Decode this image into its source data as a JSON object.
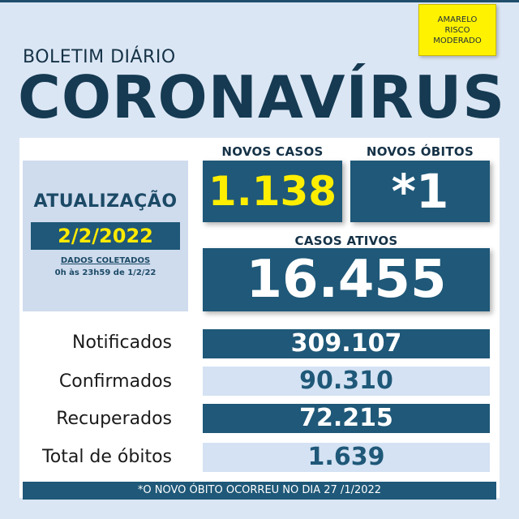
{
  "badge": {
    "line1": "AMARELO",
    "line2": "RISCO",
    "line3": "MODERADO"
  },
  "header": {
    "subtitle": "BOLETIM DIÁRIO",
    "title": "CORONAVÍRUS"
  },
  "update": {
    "title": "ATUALIZAÇÃO",
    "date": "2/2/2022",
    "note1": "DADOS COLETADOS",
    "note2": "0h às 23h59 de 1/2/22"
  },
  "highlights": {
    "novos_casos_label": "NOVOS CASOS",
    "novos_casos_value": "1.138",
    "novos_obitos_label": "NOVOS ÓBITOS",
    "novos_obitos_value": "*1",
    "casos_ativos_label": "CASOS ATIVOS",
    "casos_ativos_value": "16.455"
  },
  "stats": [
    {
      "label": "Notificados",
      "value": "309.107"
    },
    {
      "label": "Confirmados",
      "value": "90.310"
    },
    {
      "label": "Recuperados",
      "value": "72.215"
    },
    {
      "label": "Total de óbitos",
      "value": "1.639"
    }
  ],
  "footer": "*O NOVO  ÓBITO OCORREU NO DIA 27 /1/2022",
  "colors": {
    "navy": "#1f5878",
    "yellow": "#fff200",
    "light_blue": "#d4e2f3",
    "background": "#dbe6f4"
  }
}
